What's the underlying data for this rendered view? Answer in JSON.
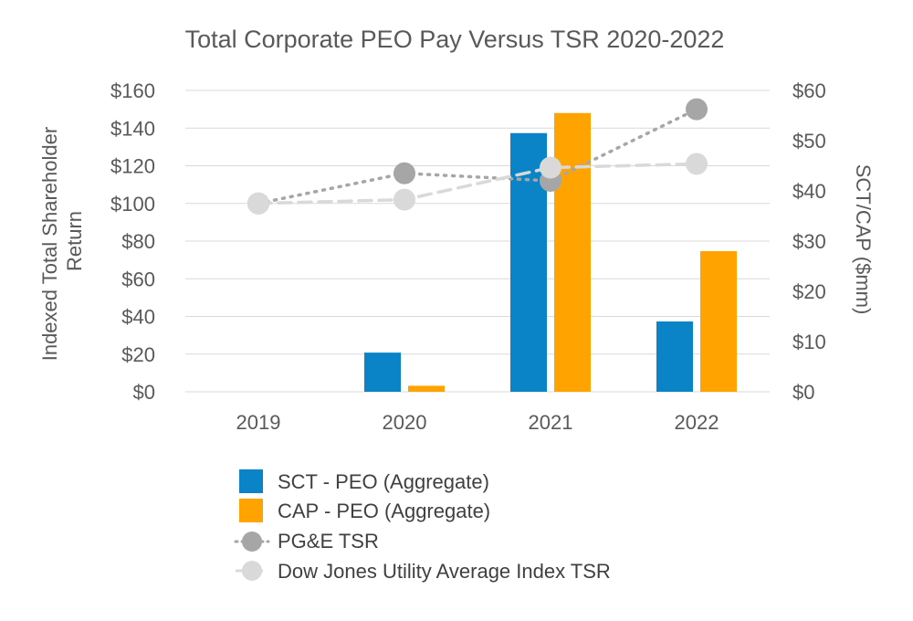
{
  "chart_data": {
    "type": "bar",
    "title": "Total Corporate PEO Pay Versus TSR 2020-2022",
    "categories": [
      "2019",
      "2020",
      "2021",
      "2022"
    ],
    "ylabel_left": [
      "Indexed Total Shareholder",
      "Return"
    ],
    "ylabel_right": "SCT/CAP ($mm)",
    "ylim_left": [
      0,
      160
    ],
    "ylim_right": [
      0,
      60
    ],
    "left_ticks": [
      "$0",
      "$20",
      "$40",
      "$60",
      "$80",
      "$100",
      "$120",
      "$140",
      "$160"
    ],
    "right_ticks": [
      "$0",
      "$10",
      "$20",
      "$30",
      "$40",
      "$50",
      "$60"
    ],
    "grid": true,
    "legend_position": "bottom",
    "series": [
      {
        "name": "SCT - PEO (Aggregate)",
        "kind": "bar",
        "axis": "right",
        "color": "#0a84c6",
        "values": [
          null,
          7.8,
          51.5,
          14.0
        ]
      },
      {
        "name": "CAP - PEO (Aggregate)",
        "kind": "bar",
        "axis": "right",
        "color": "#ffa300",
        "values": [
          null,
          1.2,
          55.5,
          28.0
        ]
      },
      {
        "name": "PG&E TSR",
        "kind": "line",
        "style": "dotted",
        "axis": "left",
        "color": "#a6a6a6",
        "values": [
          100,
          116,
          112,
          150
        ]
      },
      {
        "name": "Dow Jones Utility Average Index TSR",
        "kind": "line",
        "style": "dashed",
        "axis": "left",
        "color": "#d9d9d9",
        "values": [
          100,
          102,
          119,
          121
        ]
      }
    ]
  }
}
